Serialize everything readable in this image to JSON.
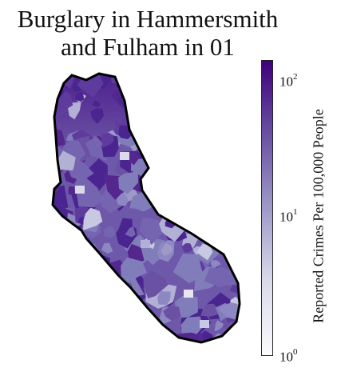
{
  "title_line1": "Burglary in Hammersmith",
  "title_line2": "and Fulham in 01",
  "colorbar": {
    "label": "Reported Crimes Per 100,000 People",
    "scale": "log",
    "range": [
      1,
      150
    ],
    "ticks": [
      {
        "base": "10",
        "exp": "0",
        "value": 1
      },
      {
        "base": "10",
        "exp": "1",
        "value": 10
      },
      {
        "base": "10",
        "exp": "2",
        "value": 100
      }
    ],
    "colormap": "Purples"
  },
  "colors": {
    "outline": "#000000",
    "colormap_low": "#fcfbfd",
    "colormap_high": "#3f007d"
  }
}
